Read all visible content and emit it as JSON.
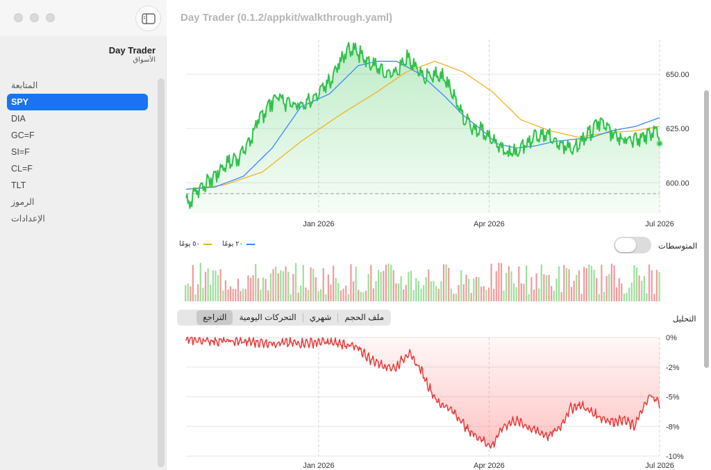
{
  "window": {
    "title": "Day Trader (0.1.2/appkit/walkthrough.yaml)"
  },
  "sidebar": {
    "app_name": "Day Trader",
    "app_subtitle": "الأسواق",
    "items": [
      {
        "label": "المتابعة",
        "kind": "header"
      },
      {
        "label": "SPY",
        "kind": "item",
        "active": true
      },
      {
        "label": "DIA",
        "kind": "item"
      },
      {
        "label": "GC=F",
        "kind": "item"
      },
      {
        "label": "SI=F",
        "kind": "item"
      },
      {
        "label": "CL=F",
        "kind": "item"
      },
      {
        "label": "TLT",
        "kind": "item"
      },
      {
        "label": "الرموز",
        "kind": "header"
      },
      {
        "label": "الإعدادات",
        "kind": "header"
      }
    ]
  },
  "averages": {
    "label": "المتوسطات",
    "enabled": false,
    "legend": [
      {
        "name": "٢٠ يومًا",
        "color": "#3a86ff"
      },
      {
        "name": "٥٠ يومًا",
        "color": "#f2b21c"
      }
    ]
  },
  "analysis": {
    "label": "التحليل",
    "tabs": [
      "التراجع",
      "التحركات اليومية",
      "شهري",
      "ملف الحجم"
    ],
    "selected": 0
  },
  "colors": {
    "price": "#2fc24a",
    "ma20": "#3a86ff",
    "ma50": "#f2b21c",
    "up": "#9be09a",
    "down": "#f29a9a",
    "drawdown": "#e83a3a",
    "accent": "#1a73f0"
  },
  "chart_data": [
    {
      "type": "line",
      "name": "price",
      "x_ticks": [
        "Jan 2026",
        "Apr 2026",
        "Jul 2026"
      ],
      "y_ticks": [
        "650.00",
        "625.00",
        "600.00"
      ],
      "ylim": [
        586,
        666
      ],
      "baseline": 595,
      "anchors": [
        [
          0,
          593
        ],
        [
          3,
          590
        ],
        [
          8,
          595
        ],
        [
          15,
          598
        ],
        [
          25,
          601
        ],
        [
          40,
          608
        ],
        [
          55,
          612
        ],
        [
          65,
          618
        ],
        [
          75,
          628
        ],
        [
          85,
          635
        ],
        [
          95,
          640
        ],
        [
          105,
          637
        ],
        [
          120,
          636
        ],
        [
          135,
          640
        ],
        [
          150,
          647
        ],
        [
          160,
          655
        ],
        [
          170,
          661
        ],
        [
          180,
          660
        ],
        [
          190,
          655
        ],
        [
          200,
          654
        ],
        [
          210,
          650
        ],
        [
          220,
          651
        ],
        [
          230,
          658
        ],
        [
          240,
          654
        ],
        [
          250,
          648
        ],
        [
          260,
          650
        ],
        [
          270,
          648
        ],
        [
          280,
          640
        ],
        [
          290,
          630
        ],
        [
          300,
          625
        ],
        [
          310,
          624
        ],
        [
          320,
          620
        ],
        [
          330,
          617
        ],
        [
          335,
          613
        ],
        [
          345,
          614
        ],
        [
          355,
          618
        ],
        [
          365,
          622
        ],
        [
          375,
          623
        ],
        [
          385,
          619
        ],
        [
          395,
          617
        ],
        [
          405,
          616
        ],
        [
          415,
          620
        ],
        [
          425,
          624
        ],
        [
          430,
          628
        ],
        [
          440,
          627
        ],
        [
          445,
          623
        ],
        [
          455,
          620
        ],
        [
          470,
          621
        ],
        [
          480,
          621
        ],
        [
          487,
          624
        ],
        [
          495,
          622
        ]
      ],
      "ma20_anchors": [
        [
          0,
          597
        ],
        [
          30,
          598
        ],
        [
          60,
          603
        ],
        [
          90,
          616
        ],
        [
          120,
          635
        ],
        [
          150,
          641
        ],
        [
          180,
          654
        ],
        [
          200,
          656
        ],
        [
          220,
          656
        ],
        [
          245,
          650
        ],
        [
          270,
          640
        ],
        [
          290,
          631
        ],
        [
          310,
          624
        ],
        [
          325,
          618
        ],
        [
          345,
          616
        ],
        [
          365,
          617
        ],
        [
          385,
          619
        ],
        [
          405,
          620
        ],
        [
          425,
          621
        ],
        [
          445,
          624
        ],
        [
          470,
          626
        ],
        [
          495,
          630
        ]
      ],
      "ma50_anchors": [
        [
          0,
          597
        ],
        [
          40,
          599
        ],
        [
          80,
          605
        ],
        [
          120,
          619
        ],
        [
          160,
          631
        ],
        [
          200,
          642
        ],
        [
          230,
          651
        ],
        [
          260,
          656
        ],
        [
          290,
          651
        ],
        [
          320,
          642
        ],
        [
          350,
          629
        ],
        [
          380,
          624
        ],
        [
          410,
          621
        ],
        [
          440,
          623
        ],
        [
          470,
          624
        ],
        [
          495,
          626
        ]
      ]
    },
    {
      "type": "bar",
      "name": "volume",
      "ylim": [
        0,
        1
      ],
      "bar_count": 190
    },
    {
      "type": "area",
      "name": "drawdown",
      "x_ticks": [
        "Jan 2026",
        "Apr 2026",
        "Jul 2026"
      ],
      "y_ticks": [
        "0%",
        "-2%",
        "-5%",
        "-8%",
        "-10%"
      ],
      "ylim": [
        -10,
        0
      ],
      "anchors": [
        [
          0,
          -0.2
        ],
        [
          40,
          -0.3
        ],
        [
          80,
          -0.4
        ],
        [
          120,
          -0.5
        ],
        [
          160,
          -0.4
        ],
        [
          190,
          -0.6
        ],
        [
          205,
          -1.1
        ],
        [
          215,
          -1.8
        ],
        [
          230,
          -2.3
        ],
        [
          245,
          -2.6
        ],
        [
          260,
          -1.3
        ],
        [
          275,
          -2.7
        ],
        [
          285,
          -4.2
        ],
        [
          295,
          -5.5
        ],
        [
          305,
          -5.8
        ],
        [
          318,
          -6.6
        ],
        [
          330,
          -7.8
        ],
        [
          345,
          -8.5
        ],
        [
          358,
          -9.2
        ],
        [
          372,
          -7.5
        ],
        [
          385,
          -7.0
        ],
        [
          395,
          -7.3
        ],
        [
          410,
          -7.9
        ],
        [
          425,
          -8.3
        ],
        [
          438,
          -7.6
        ],
        [
          450,
          -6.0
        ],
        [
          462,
          -5.7
        ],
        [
          475,
          -6.3
        ],
        [
          485,
          -6.7
        ],
        [
          500,
          -7.1
        ],
        [
          512,
          -6.9
        ],
        [
          525,
          -7.5
        ],
        [
          535,
          -6.1
        ],
        [
          545,
          -4.8
        ],
        [
          555,
          -5.6
        ]
      ]
    }
  ]
}
